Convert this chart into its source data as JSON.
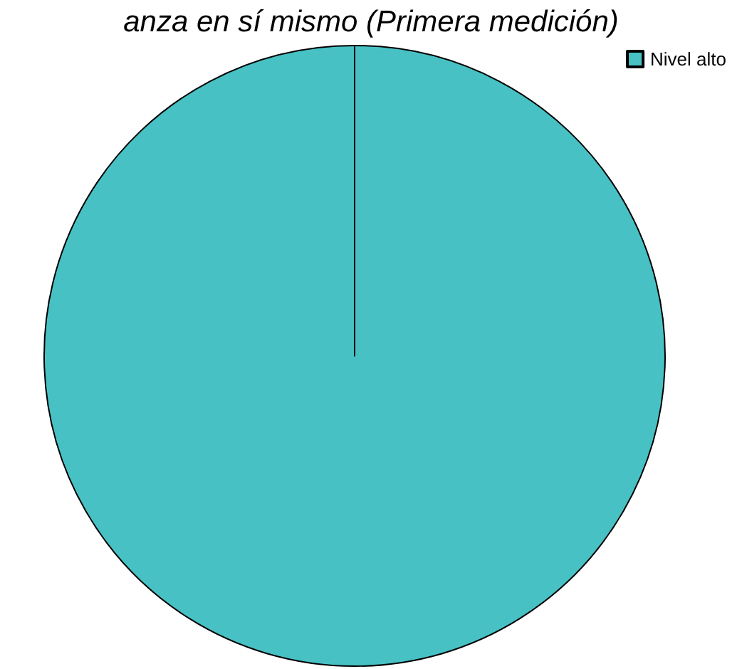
{
  "chart_data": {
    "type": "pie",
    "title": "anza en sí mismo (Primera medición)",
    "categories": [
      "Nivel alto"
    ],
    "values": [
      100
    ],
    "colors": [
      "#48c1c4"
    ],
    "legend": "top right"
  }
}
